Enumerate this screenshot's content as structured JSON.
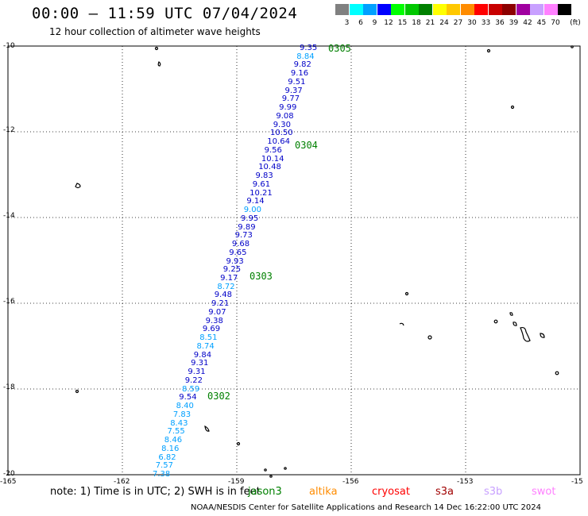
{
  "header": {
    "title": "00:00 — 11:59 UTC 07/04/2024",
    "subtitle": "12 hour collection of altimeter wave heights"
  },
  "color_scale": {
    "unit": "(ft)",
    "items": [
      {
        "label": "3",
        "color": "#808080"
      },
      {
        "label": "6",
        "color": "#00ffff"
      },
      {
        "label": "9",
        "color": "#00a0ff"
      },
      {
        "label": "12",
        "color": "#0000ff"
      },
      {
        "label": "15",
        "color": "#00ff00"
      },
      {
        "label": "18",
        "color": "#00c800"
      },
      {
        "label": "21",
        "color": "#008000"
      },
      {
        "label": "24",
        "color": "#ffff00"
      },
      {
        "label": "27",
        "color": "#ffc800"
      },
      {
        "label": "30",
        "color": "#ff8c00"
      },
      {
        "label": "33",
        "color": "#ff0000"
      },
      {
        "label": "36",
        "color": "#c80000"
      },
      {
        "label": "39",
        "color": "#8c0000"
      },
      {
        "label": "42",
        "color": "#a000a0"
      },
      {
        "label": "45",
        "color": "#c8a0ff"
      },
      {
        "label": "70",
        "color": "#ff80ff"
      },
      {
        "label": "",
        "color": "#000000"
      }
    ]
  },
  "axes": {
    "y_ticks": [
      "-10",
      "-12",
      "-14",
      "-16",
      "-18",
      "-20"
    ],
    "x_ticks": [
      "-165",
      "-162",
      "-159",
      "-156",
      "-153",
      "-15"
    ]
  },
  "track": {
    "day_labels": [
      "0305",
      "0304",
      "0303",
      "0302"
    ],
    "values": [
      {
        "v": "9.35",
        "c": "#0000c8"
      },
      {
        "v": "8.84",
        "c": "#00a0ff"
      },
      {
        "v": "9.82",
        "c": "#0000c8"
      },
      {
        "v": "9.16",
        "c": "#0000c8"
      },
      {
        "v": "9.51",
        "c": "#0000c8"
      },
      {
        "v": "9.37",
        "c": "#0000c8"
      },
      {
        "v": "9.77",
        "c": "#0000c8"
      },
      {
        "v": "9.99",
        "c": "#0000c8"
      },
      {
        "v": "9.08",
        "c": "#0000c8"
      },
      {
        "v": "9.30",
        "c": "#0000c8"
      },
      {
        "v": "10.50",
        "c": "#0000c8"
      },
      {
        "v": "10.64",
        "c": "#0000c8"
      },
      {
        "v": "9.56",
        "c": "#0000c8"
      },
      {
        "v": "10.14",
        "c": "#0000c8"
      },
      {
        "v": "10.48",
        "c": "#0000c8"
      },
      {
        "v": "9.83",
        "c": "#0000c8"
      },
      {
        "v": "9.61",
        "c": "#0000c8"
      },
      {
        "v": "10.21",
        "c": "#0000c8"
      },
      {
        "v": "9.14",
        "c": "#0000c8"
      },
      {
        "v": "9.00",
        "c": "#00a0ff"
      },
      {
        "v": "9.95",
        "c": "#0000c8"
      },
      {
        "v": "9.89",
        "c": "#0000c8"
      },
      {
        "v": "9.73",
        "c": "#0000c8"
      },
      {
        "v": "9.68",
        "c": "#0000c8"
      },
      {
        "v": "9.65",
        "c": "#0000c8"
      },
      {
        "v": "9.93",
        "c": "#0000c8"
      },
      {
        "v": "9.25",
        "c": "#0000c8"
      },
      {
        "v": "9.17",
        "c": "#0000c8"
      },
      {
        "v": "8.72",
        "c": "#00a0ff"
      },
      {
        "v": "9.48",
        "c": "#0000c8"
      },
      {
        "v": "9.21",
        "c": "#0000c8"
      },
      {
        "v": "9.07",
        "c": "#0000c8"
      },
      {
        "v": "9.38",
        "c": "#0000c8"
      },
      {
        "v": "9.69",
        "c": "#0000c8"
      },
      {
        "v": "8.51",
        "c": "#00a0ff"
      },
      {
        "v": "8.74",
        "c": "#00a0ff"
      },
      {
        "v": "9.84",
        "c": "#0000c8"
      },
      {
        "v": "9.31",
        "c": "#0000c8"
      },
      {
        "v": "9.31",
        "c": "#0000c8"
      },
      {
        "v": "9.22",
        "c": "#0000c8"
      },
      {
        "v": "8.59",
        "c": "#00a0ff"
      },
      {
        "v": "9.54",
        "c": "#0000c8"
      },
      {
        "v": "8.40",
        "c": "#00a0ff"
      },
      {
        "v": "7.83",
        "c": "#00a0ff"
      },
      {
        "v": "8.43",
        "c": "#00a0ff"
      },
      {
        "v": "7.55",
        "c": "#00a0ff"
      },
      {
        "v": "8.46",
        "c": "#00a0ff"
      },
      {
        "v": "8.16",
        "c": "#00a0ff"
      },
      {
        "v": "6.82",
        "c": "#00a0ff"
      },
      {
        "v": "7.57",
        "c": "#00a0ff"
      },
      {
        "v": "7.38",
        "c": "#00a0ff"
      }
    ]
  },
  "legend": {
    "note": "note:  1) Time is in UTC; 2) SWH is in feet",
    "satellites": [
      {
        "name": "jason3",
        "color": "#008000"
      },
      {
        "name": "altika",
        "color": "#ff8c00"
      },
      {
        "name": "cryosat",
        "color": "#ff0000"
      },
      {
        "name": "s3a",
        "color": "#a00000"
      },
      {
        "name": "s3b",
        "color": "#c8a0ff"
      },
      {
        "name": "swot",
        "color": "#ff80ff"
      }
    ]
  },
  "footer": "NOAA/NESDIS Center for Satellite Applications and Research    14 Dec 16:22:00 UTC 2024"
}
